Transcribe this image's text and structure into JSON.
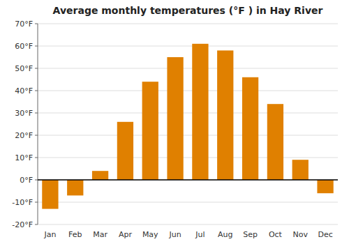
{
  "chart_data": {
    "type": "bar",
    "title": "Average monthly temperatures (°F ) in Hay River",
    "categories": [
      "Jan",
      "Feb",
      "Mar",
      "Apr",
      "May",
      "Jun",
      "Jul",
      "Aug",
      "Sep",
      "Oct",
      "Nov",
      "Dec"
    ],
    "values": [
      -13,
      -7,
      4,
      26,
      44,
      55,
      61,
      58,
      46,
      34,
      9,
      -6
    ],
    "color": "#E08000",
    "ylim": [
      -20,
      70
    ],
    "yticks": [
      {
        "value": -20,
        "label": "-20°F"
      },
      {
        "value": -10,
        "label": "-10°F"
      },
      {
        "value": 0,
        "label": "0°F"
      },
      {
        "value": 10,
        "label": "10°F"
      },
      {
        "value": 20,
        "label": "20°F"
      },
      {
        "value": 30,
        "label": "30°F"
      },
      {
        "value": 40,
        "label": "40°F"
      },
      {
        "value": 50,
        "label": "50°F"
      },
      {
        "value": 60,
        "label": "60°F"
      },
      {
        "value": 70,
        "label": "70°F"
      }
    ],
    "grid": true
  }
}
